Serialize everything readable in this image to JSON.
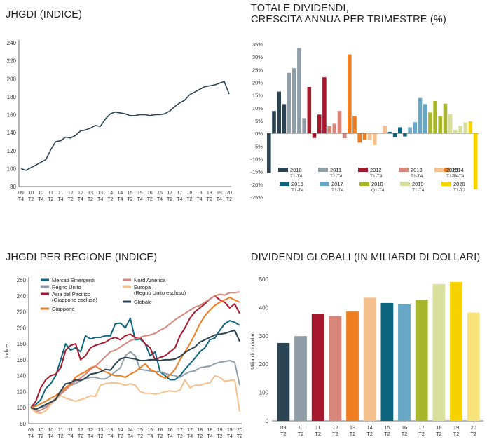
{
  "chart_data": [
    {
      "type": "line",
      "title": "JHGDI (INDICE)",
      "xlabel": "",
      "ylabel": "",
      "ylim": [
        80,
        240
      ],
      "yticks": [
        80,
        100,
        120,
        140,
        160,
        180,
        200,
        220,
        240
      ],
      "x_tick_labels": [
        [
          "09",
          "T4"
        ],
        [
          "10",
          "T2"
        ],
        [
          "10",
          "T4"
        ],
        [
          "11",
          "T2"
        ],
        [
          "11",
          "T4"
        ],
        [
          "12",
          "T2"
        ],
        [
          "12",
          "T4"
        ],
        [
          "13",
          "T2"
        ],
        [
          "13",
          "T4"
        ],
        [
          "14",
          "T2"
        ],
        [
          "14",
          "T4"
        ],
        [
          "15",
          "T2"
        ],
        [
          "15",
          "T4"
        ],
        [
          "16",
          "T2"
        ],
        [
          "16",
          "T4"
        ],
        [
          "17",
          "T2"
        ],
        [
          "17",
          "T4"
        ],
        [
          "18",
          "T2"
        ],
        [
          "18",
          "T4"
        ],
        [
          "19",
          "T2"
        ],
        [
          "19",
          "T4"
        ],
        [
          "20",
          "T2"
        ]
      ],
      "series": [
        {
          "color": "#2b4453",
          "values": [
            100,
            98,
            101,
            104,
            107,
            110,
            121,
            130,
            131,
            135,
            134,
            137,
            142,
            143,
            145,
            148,
            147,
            155,
            161,
            163,
            162,
            161,
            159,
            159,
            160,
            160,
            159,
            160,
            160,
            161,
            164,
            169,
            173,
            176,
            182,
            185,
            188,
            191,
            192,
            193,
            195,
            197,
            183
          ]
        }
      ]
    },
    {
      "type": "bar",
      "title": "TOTALE DIVIDENDI, CRESCITA ANNUA PER TRIMESTRE (%)",
      "ylim": [
        -25,
        35
      ],
      "yticks": [
        "35%",
        "30%",
        "25%",
        "20%",
        "15%",
        "10%",
        "5%",
        "0%",
        "-5%",
        "-10%",
        "-15%",
        "-20%",
        "-25%"
      ],
      "groups": [
        {
          "year": "2010",
          "period": "T1-T4",
          "color": "#2b4453",
          "values": [
            -15.5,
            8.8,
            16.4,
            11.5
          ]
        },
        {
          "year": "2011",
          "period": "T1-T4",
          "color": "#8f9ea7",
          "values": [
            23.8,
            25.6,
            33.5,
            6.0
          ]
        },
        {
          "year": "2012",
          "period": "T1-T4",
          "color": "#a8182d",
          "values": [
            18.2,
            -1.8,
            7.4,
            22.0
          ]
        },
        {
          "year": "2013",
          "period": "T1-T4",
          "color": "#d88679",
          "values": [
            2.8,
            3.8,
            8.8,
            -1.9
          ]
        },
        {
          "year": "2014",
          "period": "T1-T4",
          "color": "#ef7d22",
          "values": [
            31.0,
            6.9,
            -3.6,
            -2.6
          ]
        },
        {
          "year": "2015",
          "period": "T1-T4",
          "color": "#f5c08d",
          "values": [
            -2.7,
            -4.6,
            0.0,
            3.0
          ]
        },
        {
          "year": "2016",
          "period": "T1-T4",
          "color": "#0d6680",
          "values": [
            0.6,
            -1.5,
            2.4,
            -1.2
          ]
        },
        {
          "year": "2017",
          "period": "T1-T4",
          "color": "#68a8c6",
          "values": [
            2.4,
            4.4,
            13.9,
            11.5
          ]
        },
        {
          "year": "2018",
          "period": "Q1-T4",
          "color": "#a8b72a",
          "values": [
            8.2,
            12.7,
            6.8,
            11.7
          ]
        },
        {
          "year": "2019",
          "period": "T1-T4",
          "color": "#d8df9c",
          "values": [
            7.6,
            1.5,
            3.0,
            4.3
          ]
        },
        {
          "year": "2020",
          "period": "T1-T2",
          "color": "#f6d200",
          "values": [
            4.7,
            -22.0
          ]
        }
      ]
    },
    {
      "type": "line",
      "title": "JHGDI PER REGIONE (INDICE)",
      "ylabel": "Indice",
      "ylim": [
        80,
        260
      ],
      "yticks": [
        80,
        100,
        120,
        140,
        160,
        180,
        200,
        220,
        240,
        260
      ],
      "x_tick_labels": [
        [
          "09",
          "T4"
        ],
        [
          "10",
          "T2"
        ],
        [
          "10",
          "T4"
        ],
        [
          "11",
          "T2"
        ],
        [
          "11",
          "T4"
        ],
        [
          "12",
          "T2"
        ],
        [
          "12",
          "T4"
        ],
        [
          "13",
          "T2"
        ],
        [
          "13",
          "T4"
        ],
        [
          "14",
          "T2"
        ],
        [
          "14",
          "T4"
        ],
        [
          "15",
          "T2"
        ],
        [
          "15",
          "T4"
        ],
        [
          "16",
          "T2"
        ],
        [
          "16",
          "T4"
        ],
        [
          "17",
          "T2"
        ],
        [
          "17",
          "T4"
        ],
        [
          "18",
          "T2"
        ],
        [
          "18",
          "T4"
        ],
        [
          "19",
          "T2"
        ],
        [
          "19",
          "T4"
        ],
        [
          "20",
          "T2"
        ]
      ],
      "series": [
        {
          "name": "Mercati Emergenti",
          "color": "#0d6680",
          "values": [
            100,
            104,
            110,
            124,
            130,
            140,
            160,
            180,
            172,
            175,
            170,
            190,
            186,
            188,
            188,
            190,
            190,
            205,
            206,
            200,
            212,
            185,
            186,
            180,
            165,
            170,
            145,
            140,
            135,
            135,
            140,
            148,
            155,
            162,
            170,
            175,
            185,
            187,
            197,
            205,
            209,
            207,
            203
          ]
        },
        {
          "name": "Regno Unito",
          "color": "#8f9ea7",
          "values": [
            100,
            98,
            100,
            102,
            104,
            110,
            118,
            125,
            128,
            130,
            134,
            136,
            138,
            138,
            136,
            136,
            140,
            145,
            150,
            165,
            170,
            165,
            148,
            147,
            146,
            145,
            145,
            143,
            141,
            140,
            138,
            142,
            145,
            146,
            150,
            151,
            152,
            155,
            157,
            158,
            159,
            157,
            128
          ]
        },
        {
          "name": "Asia del Pacifico\n(Giappone escluso)",
          "color": "#a8182d",
          "values": [
            100,
            108,
            125,
            135,
            140,
            142,
            150,
            172,
            178,
            180,
            160,
            165,
            175,
            178,
            180,
            182,
            186,
            188,
            185,
            190,
            192,
            188,
            188,
            180,
            175,
            160,
            163,
            165,
            170,
            175,
            190,
            200,
            212,
            220,
            225,
            230,
            236,
            240,
            235,
            232,
            225,
            230,
            218
          ]
        },
        {
          "name": "Giappone",
          "color": "#ef7d22",
          "values": [
            100,
            102,
            105,
            108,
            112,
            115,
            120,
            125,
            130,
            138,
            142,
            145,
            150,
            152,
            148,
            145,
            142,
            140,
            140,
            138,
            142,
            145,
            150,
            155,
            148,
            145,
            140,
            137,
            141,
            148,
            160,
            170,
            180,
            192,
            205,
            215,
            222,
            228,
            232,
            235,
            238,
            235,
            232
          ]
        },
        {
          "name": "Nord America",
          "color": "#d88679",
          "values": [
            100,
            95,
            97,
            100,
            106,
            112,
            117,
            122,
            128,
            133,
            137,
            142,
            148,
            152,
            158,
            164,
            170,
            172,
            176,
            180,
            184,
            186,
            188,
            190,
            191,
            193,
            197,
            200,
            205,
            210,
            214,
            218,
            222,
            226,
            228,
            232,
            236,
            240,
            242,
            241,
            244,
            244,
            245
          ]
        },
        {
          "name": "Europa\n(Regno Unito escluso)",
          "color": "#f5c08d",
          "values": [
            100,
            94,
            93,
            96,
            104,
            110,
            115,
            112,
            110,
            108,
            110,
            112,
            115,
            114,
            128,
            130,
            131,
            131,
            130,
            128,
            130,
            128,
            120,
            118,
            118,
            117,
            118,
            120,
            121,
            120,
            122,
            135,
            125,
            128,
            128,
            130,
            131,
            140,
            138,
            133,
            134,
            135,
            95
          ]
        },
        {
          "name": "Globale",
          "color": "#2b4453",
          "values": [
            100,
            98,
            101,
            104,
            107,
            110,
            121,
            130,
            131,
            135,
            134,
            137,
            142,
            143,
            145,
            148,
            147,
            155,
            161,
            163,
            162,
            161,
            159,
            159,
            160,
            160,
            159,
            160,
            160,
            161,
            164,
            169,
            173,
            176,
            182,
            185,
            188,
            191,
            192,
            193,
            195,
            197,
            183
          ]
        }
      ]
    },
    {
      "type": "bar",
      "title": "DIVIDENDI GLOBALI (IN MILIARDI DI DOLLARI)",
      "ylabel": "Miliardi di dollari",
      "ylim": [
        0,
        500
      ],
      "yticks": [
        0,
        100,
        200,
        300,
        400,
        500
      ],
      "categories": [
        [
          "09",
          "T2"
        ],
        [
          "10",
          "T2"
        ],
        [
          "11",
          "T2"
        ],
        [
          "12",
          "T2"
        ],
        [
          "13",
          "T2"
        ],
        [
          "14",
          "T2"
        ],
        [
          "15",
          "T2"
        ],
        [
          "16",
          "T2"
        ],
        [
          "17",
          "T2"
        ],
        [
          "18",
          "T2"
        ],
        [
          "19",
          "T2"
        ],
        [
          "20",
          "T2"
        ]
      ],
      "values": [
        275,
        299,
        377,
        370,
        386,
        435,
        416,
        411,
        428,
        483,
        490,
        382
      ],
      "colors": [
        "#2b4453",
        "#8f9ea7",
        "#a8182d",
        "#d88679",
        "#ef7d22",
        "#f5c08d",
        "#0d6680",
        "#68a8c6",
        "#a8b72a",
        "#d8df9c",
        "#f6d200",
        "#f7e37a"
      ]
    }
  ]
}
